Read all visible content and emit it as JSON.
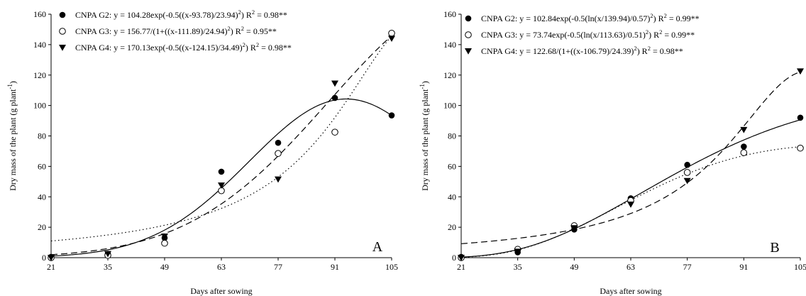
{
  "chart_data": [
    {
      "type": "scatter",
      "panel_letter": "A",
      "xlabel": "Days after sowing",
      "ylabel": "Dry mass of the plant  (g plant",
      "ylabel_exp": "-1",
      "ylabel_close": ")",
      "xlim": [
        21,
        105
      ],
      "ylim": [
        0,
        160
      ],
      "xticks": [
        21,
        35,
        49,
        63,
        77,
        91,
        105
      ],
      "yticks": [
        0,
        20,
        40,
        60,
        80,
        100,
        120,
        140,
        160
      ],
      "x": [
        21,
        35,
        49,
        63,
        77,
        91,
        105
      ],
      "grid": false,
      "legend_position": "top-left",
      "series": [
        {
          "name": "CNPA G2",
          "marker": "filled-circle",
          "line_style": "solid",
          "values": [
            0.5,
            2.5,
            13.0,
            56.5,
            75.5,
            105.0,
            93.5
          ],
          "equation": "CNPA G2: y = 104.28exp(-0.5((x-93.78)/23.94)",
          "r2": "= 0.98**",
          "model": {
            "kind": "gauss",
            "a": 104.28,
            "x0": 93.78,
            "b": 23.94
          }
        },
        {
          "name": "CNPA G3",
          "marker": "open-circle",
          "line_style": "dotted",
          "values": [
            0.0,
            1.5,
            9.5,
            44.0,
            68.5,
            82.5,
            147.5
          ],
          "equation": "CNPA G3: y = 156.77/(1+((x-111.89)/24.94)",
          "r2": "= 0.95**",
          "model": {
            "kind": "lorentz",
            "a": 156.77,
            "x0": 111.89,
            "b": 24.94
          }
        },
        {
          "name": "CNPA G4",
          "marker": "filled-triangle-down",
          "line_style": "dashed",
          "values": [
            0.0,
            2.5,
            14.0,
            47.5,
            51.5,
            114.5,
            144.0
          ],
          "equation": "CNPA G4: y = 170.13exp(-0.5((x-124.15)/34.49)",
          "r2": "= 0.98**",
          "model": {
            "kind": "gauss",
            "a": 170.13,
            "x0": 124.15,
            "b": 34.49
          }
        }
      ]
    },
    {
      "type": "scatter",
      "panel_letter": "B",
      "xlabel": "Days after sowing",
      "ylabel": "Dry mass of the plant  (g plant",
      "ylabel_exp": "-1",
      "ylabel_close": ")",
      "xlim": [
        21,
        105
      ],
      "ylim": [
        0,
        160
      ],
      "xticks": [
        21,
        35,
        49,
        63,
        77,
        91,
        105
      ],
      "yticks": [
        0,
        20,
        40,
        60,
        80,
        100,
        120,
        140,
        160
      ],
      "x": [
        21,
        35,
        49,
        63,
        77,
        91,
        105
      ],
      "grid": false,
      "legend_position": "top-left",
      "series": [
        {
          "name": "CNPA G2",
          "marker": "filled-circle",
          "line_style": "solid",
          "values": [
            0.5,
            3.5,
            18.5,
            39.0,
            61.0,
            73.0,
            92.0
          ],
          "equation": "CNPA G2: y = 102.84exp(-0.5(ln(x/139.94)/0.57)",
          "r2": "= 0.99**",
          "model": {
            "kind": "lognormal",
            "a": 102.84,
            "x0": 139.94,
            "b": 0.57
          }
        },
        {
          "name": "CNPA G3",
          "marker": "open-circle",
          "line_style": "dotted",
          "values": [
            0.0,
            5.5,
            21.0,
            37.5,
            56.0,
            69.0,
            72.0
          ],
          "equation": "CNPA G3: y = 73.74exp(-0.5(ln(x/113.63)/0.51)",
          "r2": "= 0.99**",
          "model": {
            "kind": "lognormal",
            "a": 73.74,
            "x0": 113.63,
            "b": 0.51
          }
        },
        {
          "name": "CNPA G4",
          "marker": "filled-triangle-down",
          "line_style": "dashed",
          "values": [
            0.0,
            4.0,
            19.5,
            35.0,
            50.5,
            84.0,
            122.5
          ],
          "equation": "CNPA G4: y = 122.68/(1+((x-106.79)/24.39)",
          "r2": "= 0.98**",
          "model": {
            "kind": "lorentz",
            "a": 122.68,
            "x0": 106.79,
            "b": 24.39
          }
        }
      ]
    }
  ],
  "equation_exponent": "2",
  "equation_close": ")",
  "r2_symbol": "R",
  "r2_exponent": "2"
}
